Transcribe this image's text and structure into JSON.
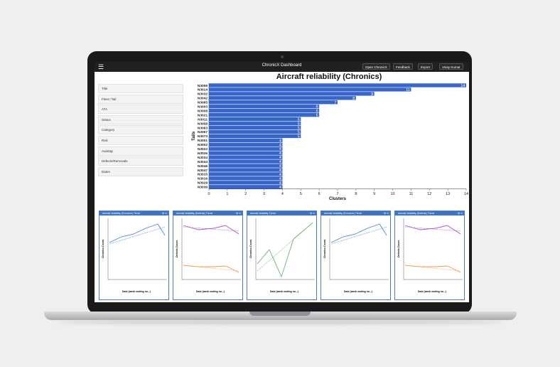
{
  "navbar": {
    "menu_icon": "☰",
    "title": "ChronicX Dashboard",
    "open_label": "Open ChronicX",
    "feedback_label": "Feedback",
    "export_label": "Export",
    "user_label": "Vinay Kumar"
  },
  "filters": [
    "Title",
    "Fleet / Tail",
    "ATA",
    "Status",
    "Category",
    "Risk",
    "Autotag",
    "Defects/Removals",
    "Dates"
  ],
  "chart_data": {
    "type": "bar",
    "title": "Aircraft reliability (Chronics)",
    "xlabel": "Clusters",
    "ylabel": "Tails",
    "xlim": [
      0,
      14
    ],
    "categories": [
      "N3059",
      "N3014",
      "N3032",
      "N3042",
      "N3065",
      "N3003",
      "N3008",
      "N3021",
      "N3011",
      "N3058",
      "N3063",
      "N3067",
      "N3073",
      "N3001",
      "N3002",
      "N3022",
      "N3026",
      "N3034",
      "N3044",
      "N3046",
      "N3047",
      "N3015",
      "N3016",
      "N3029",
      "N3039"
    ],
    "values": [
      14,
      11,
      9,
      8,
      7,
      6,
      6,
      6,
      5,
      5,
      5,
      5,
      5,
      4,
      4,
      4,
      4,
      4,
      4,
      4,
      4,
      4,
      4,
      4,
      4
    ],
    "color": "#3765c9"
  },
  "panels": [
    {
      "title": "Aircraft reliability (Chronics) Trend",
      "ylabel": "Chronics Count",
      "xlabel": "Date (week ending on...)"
    },
    {
      "title": "Aircraft reliability (Defects) Trend",
      "ylabel": "Defects Count",
      "xlabel": "Date (week ending on...)"
    },
    {
      "title": "Aircraft reliability Trend",
      "ylabel": "Chronics Count",
      "xlabel": "Date (week ending on...)"
    },
    {
      "title": "Aircraft reliability (Chronics) Trend",
      "ylabel": "Chronics Count",
      "xlabel": "Date (week ending on...)"
    },
    {
      "title": "Aircraft reliability (Defects) Trend",
      "ylabel": "Defects Count",
      "xlabel": "Date (week ending on...)"
    }
  ],
  "panel_controls": "⚙ ✕"
}
